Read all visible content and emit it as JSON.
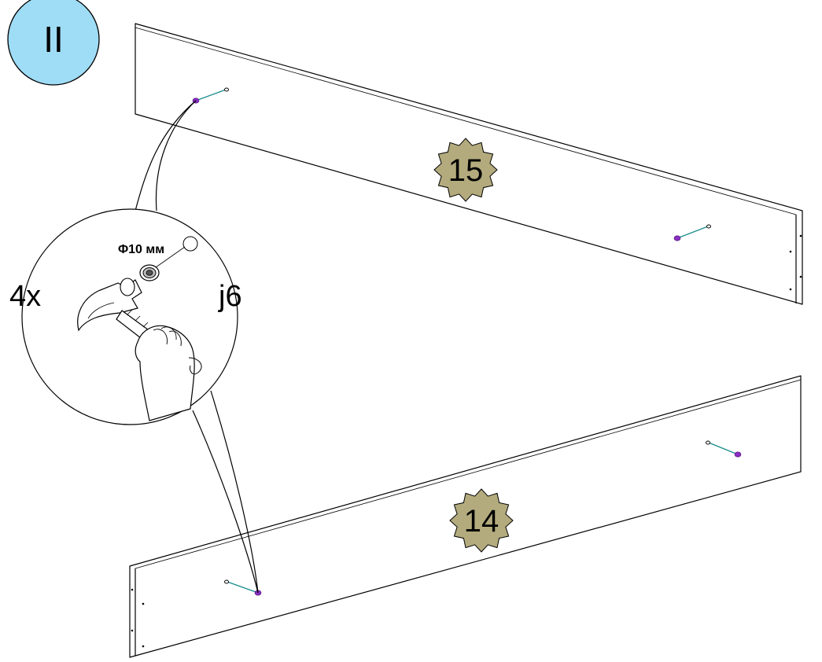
{
  "step": {
    "label": "II",
    "badge_color": "#9fdcf5"
  },
  "parts": [
    {
      "id": "part-15",
      "label": "15",
      "badge_color": "#b3ab7d"
    },
    {
      "id": "part-14",
      "label": "14",
      "badge_color": "#b3ab7d"
    }
  ],
  "detail": {
    "quantity": "4x",
    "part_code": "j6",
    "hole_size": "Φ10 мм"
  },
  "colors": {
    "dowel": "#8a2ec4",
    "dowel_line": "#1a8c8c",
    "outline": "#000000"
  }
}
